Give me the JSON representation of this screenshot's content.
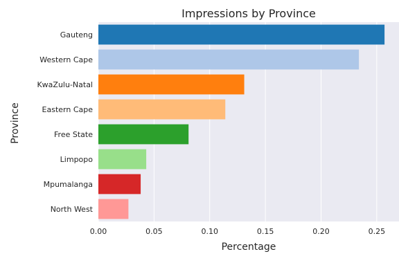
{
  "chart_data": {
    "type": "bar",
    "orientation": "horizontal",
    "title": "Impressions by Province",
    "xlabel": "Percentage",
    "ylabel": "Province",
    "categories": [
      "Gauteng",
      "Western Cape",
      "KwaZulu-Natal",
      "Eastern Cape",
      "Free State",
      "Limpopo",
      "Mpumalanga",
      "North West"
    ],
    "values": [
      0.257,
      0.234,
      0.131,
      0.114,
      0.081,
      0.043,
      0.038,
      0.027
    ],
    "colors": [
      "#1f77b4",
      "#aec7e8",
      "#ff7f0e",
      "#ffbb78",
      "#2ca02c",
      "#98df8a",
      "#d62728",
      "#ff9896"
    ],
    "xlim": [
      0,
      0.27
    ],
    "xticks": [
      "0.00",
      "0.05",
      "0.10",
      "0.15",
      "0.20",
      "0.25"
    ],
    "grid": true,
    "background": "#eaeaf2"
  }
}
